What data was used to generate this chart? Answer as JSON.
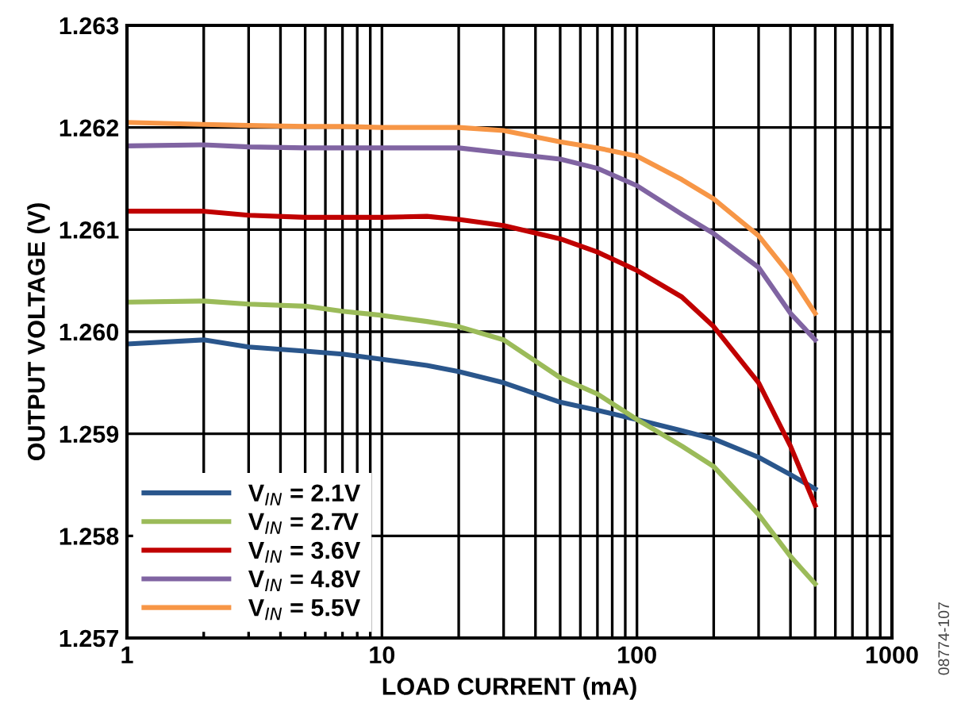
{
  "chart_data": {
    "type": "line",
    "xlabel": "LOAD CURRENT (mA)",
    "ylabel": "OUTPUT VOLTAGE (V)",
    "x": [
      1,
      2,
      3,
      5,
      7,
      10,
      15,
      20,
      30,
      50,
      70,
      100,
      150,
      200,
      300,
      400,
      500
    ],
    "series": [
      {
        "name": "V$_{IN}$ = 2.1V",
        "color": "#2a568c",
        "values": [
          1.25988,
          1.25992,
          1.25985,
          1.25981,
          1.25978,
          1.25973,
          1.25967,
          1.25961,
          1.2595,
          1.25931,
          1.25923,
          1.25914,
          1.25903,
          1.25895,
          1.25877,
          1.2586,
          1.25846
        ]
      },
      {
        "name": "V$_{IN}$ = 2.7V",
        "color": "#9bbb59",
        "values": [
          1.26029,
          1.2603,
          1.26027,
          1.26025,
          1.2602,
          1.26016,
          1.2601,
          1.26005,
          1.25992,
          1.25955,
          1.25939,
          1.25914,
          1.25888,
          1.25868,
          1.25821,
          1.2578,
          1.25753
        ]
      },
      {
        "name": "V$_{IN}$ = 3.6V",
        "color": "#c00000",
        "values": [
          1.26118,
          1.26118,
          1.26114,
          1.26112,
          1.26112,
          1.26112,
          1.26113,
          1.2611,
          1.26104,
          1.26091,
          1.26078,
          1.2606,
          1.26034,
          1.26005,
          1.2595,
          1.25888,
          1.2583
        ]
      },
      {
        "name": "V$_{IN}$ = 4.8V",
        "color": "#8064a2",
        "values": [
          1.26182,
          1.26183,
          1.26181,
          1.2618,
          1.2618,
          1.2618,
          1.2618,
          1.2618,
          1.26175,
          1.26169,
          1.2616,
          1.26143,
          1.26115,
          1.26096,
          1.26063,
          1.26018,
          1.25992
        ]
      },
      {
        "name": "V$_{IN}$ = 5.5V",
        "color": "#f79646",
        "values": [
          1.26205,
          1.26203,
          1.26202,
          1.26201,
          1.26201,
          1.262,
          1.262,
          1.262,
          1.26197,
          1.26186,
          1.2618,
          1.26172,
          1.26149,
          1.2613,
          1.26094,
          1.26055,
          1.26018
        ]
      }
    ],
    "log": "x",
    "xlim": [
      1,
      1000
    ],
    "xticks": [
      1,
      10,
      100,
      1000
    ],
    "ylim": [
      1.257,
      1.263
    ],
    "yticks": [
      {
        "value": 1.257,
        "label": "1.257"
      },
      {
        "value": 1.258,
        "label": "1.258"
      },
      {
        "value": 1.259,
        "label": "1.259"
      },
      {
        "value": 1.26,
        "label": "1.260"
      },
      {
        "value": 1.261,
        "label": "1.261"
      },
      {
        "value": 1.262,
        "label": "1.262"
      },
      {
        "value": 1.263,
        "label": "1.263"
      }
    ],
    "grid": true,
    "legend": "bottom left",
    "marker": "none",
    "line_style": "solid",
    "annotations": [
      "08774-107"
    ]
  }
}
